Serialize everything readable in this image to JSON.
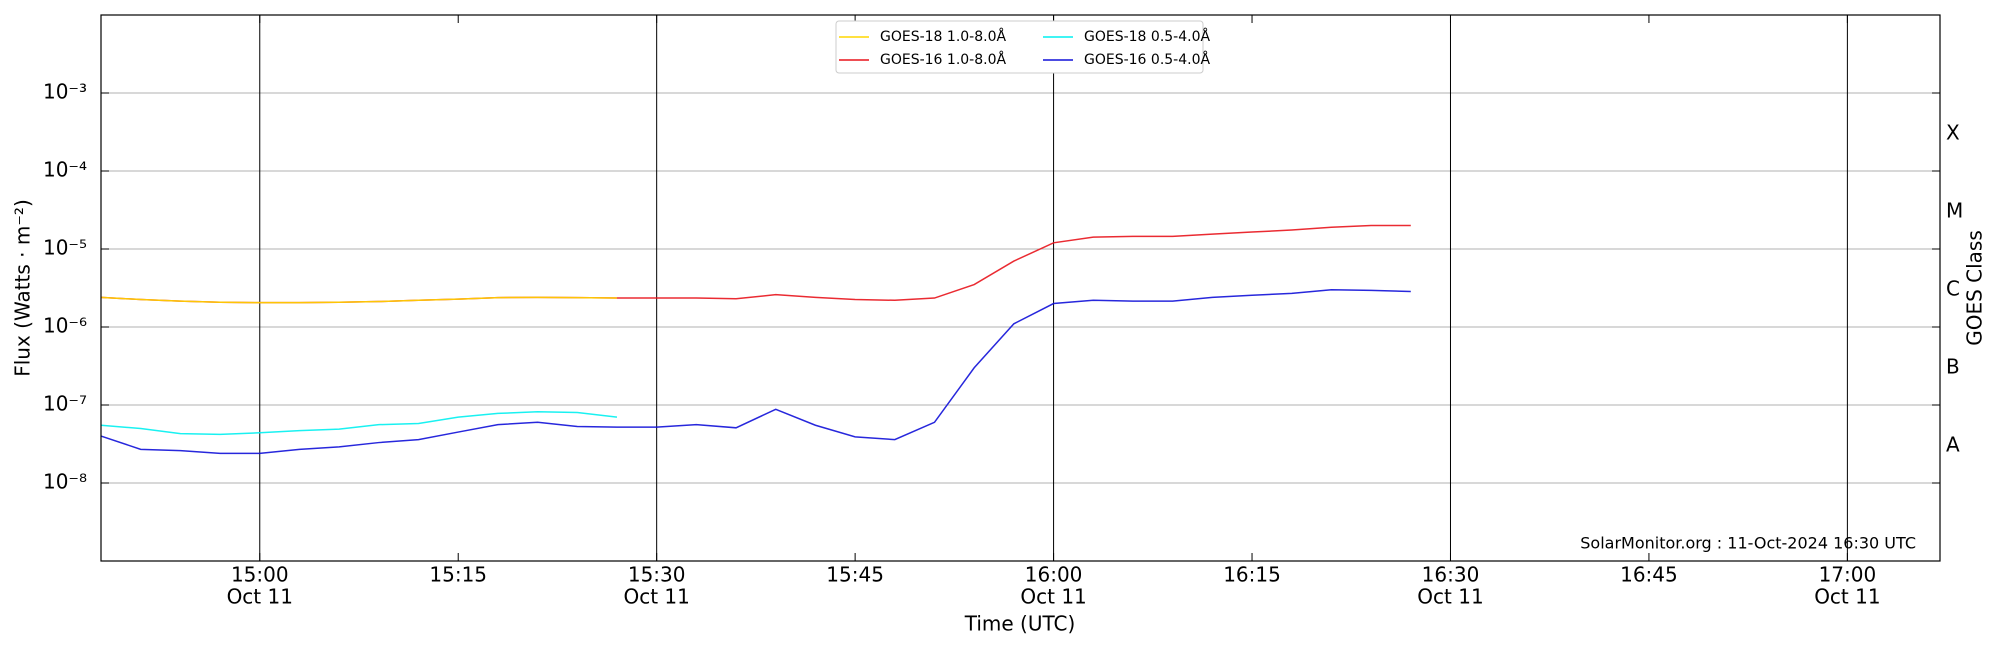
{
  "chart_data": {
    "type": "line",
    "xlabel": "Time (UTC)",
    "ylabel": "Flux (Watts · m⁻²)",
    "y2label": "GOES Class",
    "annotation": "SolarMonitor.org : 11-Oct-2024 16:30 UTC",
    "log_y": true,
    "grid": true,
    "legend": "top-center",
    "x": [
      "14:48",
      "14:51",
      "14:54",
      "14:57",
      "15:00",
      "15:03",
      "15:06",
      "15:09",
      "15:12",
      "15:15",
      "15:18",
      "15:21",
      "15:24",
      "15:27",
      "15:30",
      "15:33",
      "15:36",
      "15:39",
      "15:42",
      "15:45",
      "15:48",
      "15:51",
      "15:54",
      "15:57",
      "16:00",
      "16:03",
      "16:06",
      "16:09",
      "16:12",
      "16:15",
      "16:18",
      "16:21",
      "16:24",
      "16:27"
    ],
    "xlim": [
      "14:48",
      "17:07"
    ],
    "xticks": [
      "15:00",
      "15:15",
      "15:30",
      "15:45",
      "16:00",
      "16:15",
      "16:30",
      "16:45",
      "17:00"
    ],
    "xtick_dates": [
      "Oct 11",
      null,
      "Oct 11",
      null,
      "Oct 11",
      null,
      "Oct 11",
      null,
      "Oct 11"
    ],
    "ylim": [
      1e-09,
      0.01
    ],
    "yticks": [
      {
        "value": 1e-08,
        "label": "10⁻⁸"
      },
      {
        "value": 1e-07,
        "label": "10⁻⁷"
      },
      {
        "value": 1e-06,
        "label": "10⁻⁶"
      },
      {
        "value": 1e-05,
        "label": "10⁻⁵"
      },
      {
        "value": 0.0001,
        "label": "10⁻⁴"
      },
      {
        "value": 0.001,
        "label": "10⁻³"
      }
    ],
    "y2lim": [
      1e-09,
      0.01
    ],
    "y2ticks": [
      {
        "value": 3e-08,
        "label": "A"
      },
      {
        "value": 3e-07,
        "label": "B"
      },
      {
        "value": 3e-06,
        "label": "C"
      },
      {
        "value": 3e-05,
        "label": "M"
      },
      {
        "value": 0.0003,
        "label": "X"
      }
    ],
    "series": [
      {
        "name": "GOES-18 1.0-8.0Å",
        "color": "#ffd700",
        "values": [
          2.4e-06,
          2.25e-06,
          2.15e-06,
          2.08e-06,
          2.05e-06,
          2.05e-06,
          2.08e-06,
          2.12e-06,
          2.2e-06,
          2.28e-06,
          2.38e-06,
          2.4e-06,
          2.38e-06,
          2.35e-06,
          null,
          null,
          null,
          null,
          null,
          null,
          null,
          null,
          null,
          null,
          null,
          null,
          null,
          null,
          null,
          null,
          null,
          null,
          null,
          null
        ]
      },
      {
        "name": "GOES-16 1.0-8.0Å",
        "color": "#e8141c",
        "values": [
          2.4e-06,
          2.25e-06,
          2.15e-06,
          2.08e-06,
          2.05e-06,
          2.05e-06,
          2.08e-06,
          2.12e-06,
          2.2e-06,
          2.28e-06,
          2.38e-06,
          2.4e-06,
          2.38e-06,
          2.35e-06,
          2.35e-06,
          2.35e-06,
          2.3e-06,
          2.6e-06,
          2.4e-06,
          2.25e-06,
          2.2e-06,
          2.35e-06,
          3.5e-06,
          7e-06,
          1.2e-05,
          1.42e-05,
          1.45e-05,
          1.45e-05,
          1.55e-05,
          1.65e-05,
          1.75e-05,
          1.9e-05,
          2e-05,
          2e-05
        ]
      },
      {
        "name": "GOES-18 0.5-4.0Å",
        "color": "#00f0f0",
        "values": [
          5.5e-08,
          5e-08,
          4.3e-08,
          4.2e-08,
          4.4e-08,
          4.7e-08,
          4.9e-08,
          5.6e-08,
          5.8e-08,
          7e-08,
          7.8e-08,
          8.2e-08,
          8e-08,
          7e-08,
          null,
          null,
          null,
          null,
          null,
          null,
          null,
          null,
          null,
          null,
          null,
          null,
          null,
          null,
          null,
          null,
          null,
          null,
          null,
          null
        ]
      },
      {
        "name": "GOES-16 0.5-4.0Å",
        "color": "#1010d8",
        "values": [
          4e-08,
          2.7e-08,
          2.6e-08,
          2.4e-08,
          2.4e-08,
          2.7e-08,
          2.9e-08,
          3.3e-08,
          3.6e-08,
          4.5e-08,
          5.6e-08,
          6e-08,
          5.3e-08,
          5.2e-08,
          5.2e-08,
          5.6e-08,
          5.1e-08,
          8.8e-08,
          5.5e-08,
          3.9e-08,
          3.6e-08,
          6e-08,
          3e-07,
          1.1e-06,
          2e-06,
          2.2e-06,
          2.15e-06,
          2.15e-06,
          2.4e-06,
          2.55e-06,
          2.7e-06,
          3e-06,
          2.95e-06,
          2.85e-06
        ]
      }
    ]
  }
}
